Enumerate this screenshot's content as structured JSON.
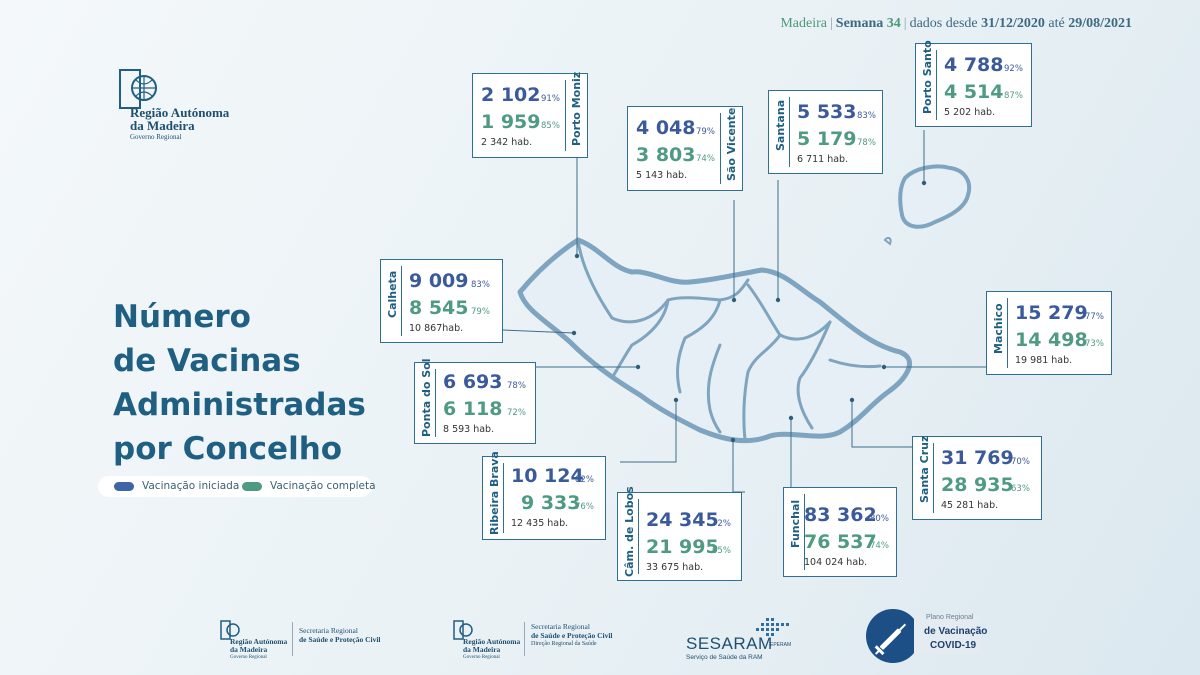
{
  "header": {
    "region": "Madeira",
    "week_label": "Semana",
    "week_number": "34",
    "since_text": "dados desde",
    "from_date": "31/12/2020",
    "until_text": "até",
    "to_date": "29/08/2021"
  },
  "logo": {
    "line1": "Região Autónoma",
    "line2": "da Madeira",
    "line3": "Governo Regional"
  },
  "title": {
    "line1": "Número",
    "line2": "de Vacinas",
    "line3": "Administradas",
    "line4": "por Concelho"
  },
  "legend": {
    "started": "Vacinação iniciada",
    "complete": "Vacinação completa",
    "started_color": "#3f64a8",
    "complete_color": "#4f9a82"
  },
  "municipalities": {
    "porto_moniz": {
      "name": "Porto Moniz",
      "started": "2 102",
      "started_pct": "91%",
      "complete": "1 959",
      "complete_pct": "85%",
      "population": "2 342 hab."
    },
    "sao_vicente": {
      "name": "São Vicente",
      "started": "4 048",
      "started_pct": "79%",
      "complete": "3 803",
      "complete_pct": "74%",
      "population": "5 143 hab."
    },
    "santana": {
      "name": "Santana",
      "started": "5 533",
      "started_pct": "83%",
      "complete": "5 179",
      "complete_pct": "78%",
      "population": "6 711 hab."
    },
    "porto_santo": {
      "name": "Porto Santo",
      "started": "4 788",
      "started_pct": "92%",
      "complete": "4 514",
      "complete_pct": "87%",
      "population": "5 202 hab."
    },
    "calheta": {
      "name": "Calheta",
      "started": "9 009",
      "started_pct": "83%",
      "complete": "8 545",
      "complete_pct": "79%",
      "population": "10 867hab."
    },
    "machico": {
      "name": "Machico",
      "started": "15 279",
      "started_pct": "77%",
      "complete": "14 498",
      "complete_pct": "73%",
      "population": "19 981 hab."
    },
    "ponta_do_sol": {
      "name": "Ponta do Sol",
      "started": "6 693",
      "started_pct": "78%",
      "complete": "6 118",
      "complete_pct": "72%",
      "population": "8 593 hab."
    },
    "santa_cruz": {
      "name": "Santa Cruz",
      "started": "31 769",
      "started_pct": "70%",
      "complete": "28 935",
      "complete_pct": "63%",
      "population": "45 281 hab."
    },
    "ribeira_brava": {
      "name": "Ribeira Brava",
      "started": "10 124",
      "started_pct": "82%",
      "complete": "9 333",
      "complete_pct": "76%",
      "population": "12 435 hab."
    },
    "camara_de_lobos": {
      "name": "Câm. de Lobos",
      "started": "24 345",
      "started_pct": "72%",
      "complete": "21 995",
      "complete_pct": "65%",
      "population": "33 675 hab."
    },
    "funchal": {
      "name": "Funchal",
      "started": "83 362",
      "started_pct": "80%",
      "complete": "76 537",
      "complete_pct": "74%",
      "population": "104 024 hab."
    }
  },
  "footer": {
    "logo1_line1": "Região Autónoma",
    "logo1_line2": "da Madeira",
    "logo1_line3": "Governo Regional",
    "sec1_line1": "Secretaria Regional",
    "sec1_line2": "de Saúde e Proteção Civil",
    "logo2_line1": "Região Autónoma",
    "logo2_line2": "da Madeira",
    "logo2_line3": "Governo Regional",
    "sec2_line1": "Secretaria Regional",
    "sec2_line2": "de Saúde e Proteção Civil",
    "sec2_line3": "Direção Regional da Saúde",
    "sesaram": "SESARAM",
    "sesaram_sub": "Serviço de Saúde da RAM",
    "sesaram_epe": "EPERAM",
    "plano_line1": "Plano Regional",
    "plano_line2": "de Vacinação",
    "plano_line3": "COVID-19"
  }
}
